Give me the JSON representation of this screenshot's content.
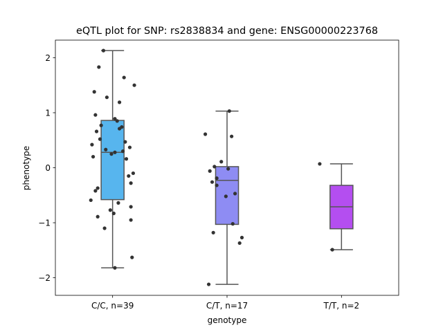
{
  "chart_data": {
    "type": "box",
    "title": "eQTL plot for SNP: rs2838834 and gene: ENSG00000223768",
    "xlabel": "genotype",
    "ylabel": "phenotype",
    "ylim": [
      -2.32,
      2.32
    ],
    "yticks": [
      2,
      1,
      0,
      -1,
      -2
    ],
    "ytick_labels": [
      "2",
      "1",
      "0",
      "−1",
      "−2"
    ],
    "grid": false,
    "categories": [
      "C/C, n=39",
      "C/T, n=17",
      "T/T, n=2"
    ],
    "colors": [
      "#57b5ee",
      "#8e8cf3",
      "#b44ef0"
    ],
    "boxes": [
      {
        "whisker_low": -1.82,
        "q1": -0.58,
        "median": 0.28,
        "q3": 0.86,
        "whisker_high": 2.13
      },
      {
        "whisker_low": -2.12,
        "q1": -1.03,
        "median": -0.23,
        "q3": 0.02,
        "whisker_high": 1.03
      },
      {
        "whisker_low": -1.49,
        "q1": -1.11,
        "median": -0.71,
        "q3": -0.32,
        "whisker_high": 0.07
      }
    ],
    "points": [
      [
        [
          -0.08,
          2.13
        ],
        [
          -0.12,
          1.83
        ],
        [
          0.1,
          1.64
        ],
        [
          0.19,
          1.5
        ],
        [
          -0.16,
          1.38
        ],
        [
          -0.05,
          1.28
        ],
        [
          0.06,
          1.19
        ],
        [
          -0.15,
          0.96
        ],
        [
          0.02,
          0.89
        ],
        [
          0.04,
          0.85
        ],
        [
          -0.1,
          0.77
        ],
        [
          0.08,
          0.74
        ],
        [
          -0.14,
          0.66
        ],
        [
          0.06,
          0.71
        ],
        [
          -0.11,
          0.52
        ],
        [
          0.11,
          0.47
        ],
        [
          0.15,
          0.37
        ],
        [
          -0.18,
          0.42
        ],
        [
          -0.06,
          0.33
        ],
        [
          0.02,
          0.28
        ],
        [
          0.09,
          0.3
        ],
        [
          -0.01,
          0.25
        ],
        [
          -0.17,
          0.2
        ],
        [
          0.12,
          0.16
        ],
        [
          0.18,
          -0.1
        ],
        [
          0.14,
          -0.15
        ],
        [
          0.16,
          -0.28
        ],
        [
          -0.13,
          -0.37
        ],
        [
          -0.15,
          -0.42
        ],
        [
          -0.19,
          -0.59
        ],
        [
          0.05,
          -0.64
        ],
        [
          0.16,
          -0.71
        ],
        [
          -0.02,
          -0.77
        ],
        [
          0.01,
          -0.83
        ],
        [
          -0.13,
          -0.89
        ],
        [
          0.16,
          -0.95
        ],
        [
          -0.07,
          -1.1
        ],
        [
          0.17,
          -1.63
        ],
        [
          0.02,
          -1.82
        ]
      ],
      [
        [
          0.02,
          1.03
        ],
        [
          -0.19,
          0.61
        ],
        [
          0.04,
          0.57
        ],
        [
          -0.05,
          0.11
        ],
        [
          -0.11,
          0.02
        ],
        [
          0.01,
          -0.02
        ],
        [
          -0.15,
          -0.06
        ],
        [
          -0.09,
          -0.19
        ],
        [
          -0.13,
          -0.26
        ],
        [
          -0.09,
          -0.32
        ],
        [
          0.07,
          -0.47
        ],
        [
          -0.01,
          -0.52
        ],
        [
          0.05,
          -1.02
        ],
        [
          -0.12,
          -1.18
        ],
        [
          0.13,
          -1.27
        ],
        [
          0.11,
          -1.37
        ],
        [
          -0.16,
          -2.12
        ]
      ],
      [
        [
          -0.19,
          0.07
        ],
        [
          -0.08,
          -1.49
        ]
      ]
    ]
  }
}
